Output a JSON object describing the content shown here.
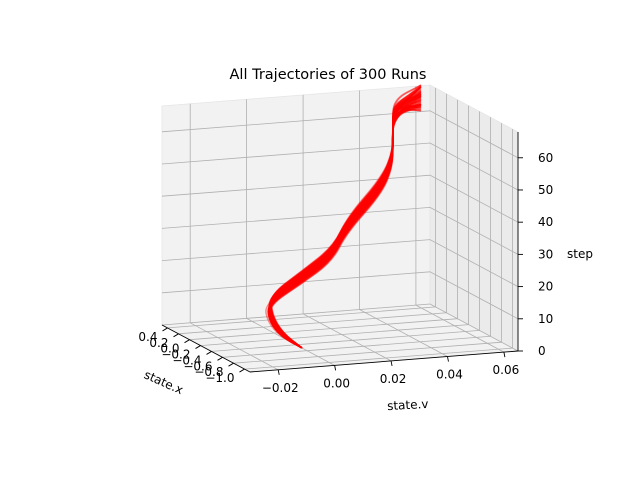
{
  "chart_data": {
    "type": "line3d",
    "title": "All Trajectories of 300 Runs",
    "xlabel": "state.x",
    "ylabel": "state.v",
    "zlabel": "step",
    "xlim": [
      -1.1,
      0.5
    ],
    "ylim": [
      -0.03,
      0.065
    ],
    "zlim": [
      0,
      68
    ],
    "x_ticks": [
      "−1.0",
      "−0.8",
      "−0.6",
      "−0.4",
      "−0.2",
      "0.0",
      "0.2",
      "0.4"
    ],
    "y_ticks": [
      "−0.02",
      "0.00",
      "0.02",
      "0.04",
      "0.06"
    ],
    "z_ticks": [
      "0",
      "10",
      "20",
      "30",
      "40",
      "50",
      "60"
    ],
    "runs": 300,
    "line_color": "#ff0000",
    "grid": true,
    "representative_trajectory": {
      "x": [
        -0.5,
        -0.55,
        -0.7,
        -0.93,
        -1.1,
        -1.05,
        -0.8,
        -0.4,
        -0.1,
        0.15,
        0.4,
        0.52
      ],
      "v": [
        0.0,
        -0.008,
        -0.015,
        -0.02,
        -0.012,
        0.0,
        0.01,
        0.03,
        0.04,
        0.045,
        0.05,
        0.062
      ],
      "step": [
        0,
        5,
        12,
        20,
        28,
        34,
        40,
        47,
        52,
        57,
        62,
        67
      ]
    }
  }
}
